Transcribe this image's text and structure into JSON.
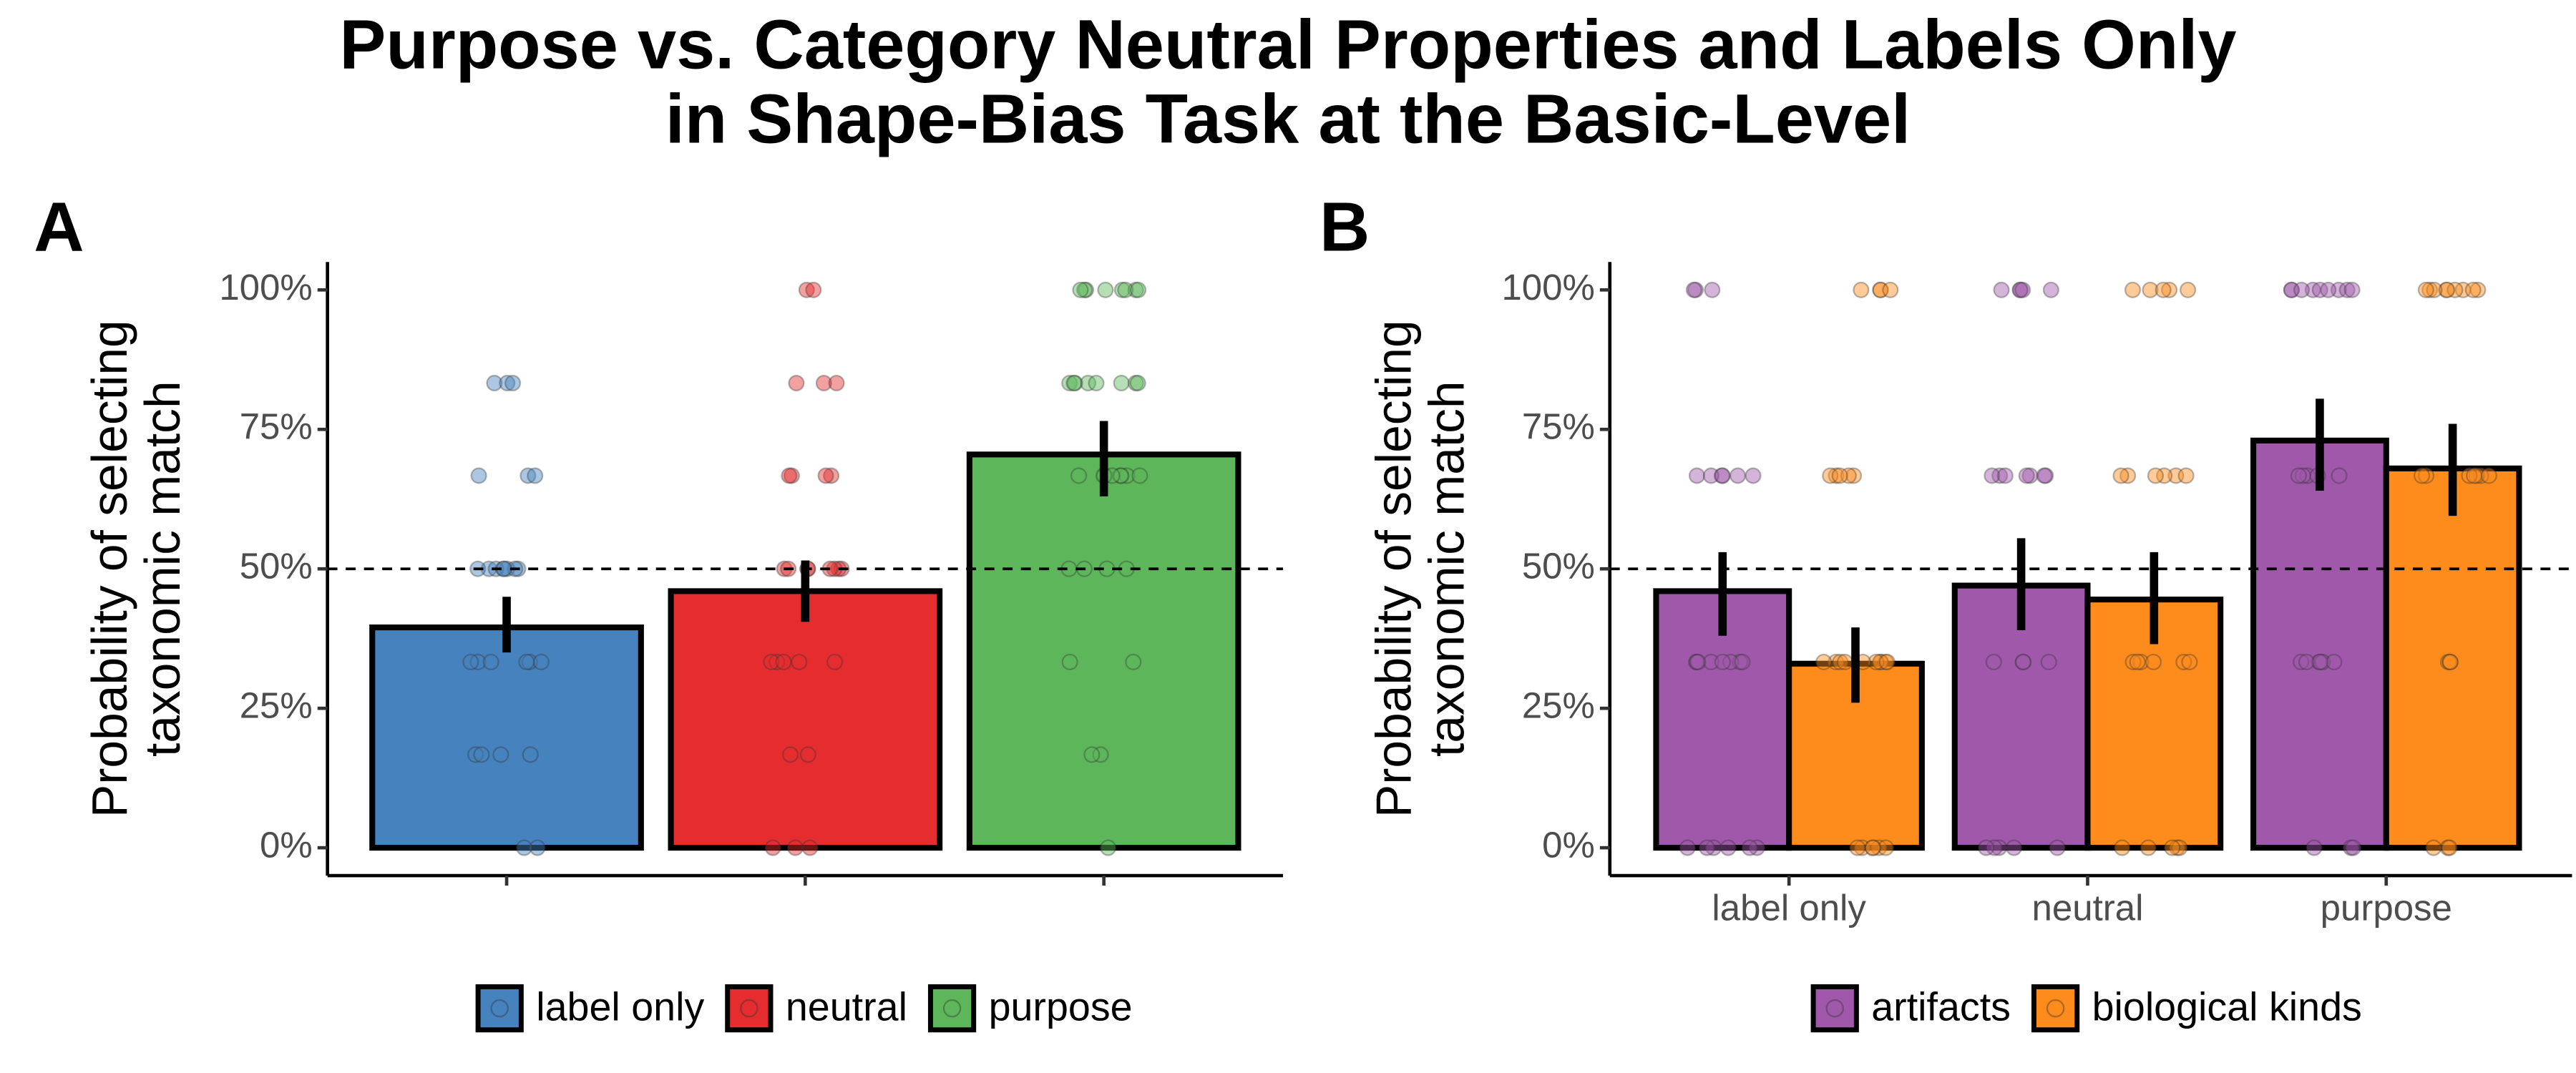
{
  "title": [
    "Purpose vs. Category Neutral Properties and Labels Only",
    "in Shape-Bias Task at the Basic-Level"
  ],
  "chart_data": [
    {
      "type": "bar",
      "panel": "A",
      "ylabel": [
        "Probability of selecting",
        "taxonomic match"
      ],
      "categories": [
        "label only",
        "neutral",
        "purpose"
      ],
      "show_x_tick_labels": false,
      "colors": [
        "#4682bd",
        "#e52d2f",
        "#5db75a"
      ],
      "values": [
        39.5,
        46,
        70.5
      ],
      "ci_low": [
        35,
        40.5,
        63
      ],
      "ci_high": [
        45,
        51.5,
        76.5
      ],
      "points": [
        [
          0,
          0,
          16.7,
          16.7,
          16.7,
          16.7,
          33.3,
          33.3,
          33.3,
          33.3,
          33.3,
          33.3,
          50,
          50,
          50,
          50,
          50,
          50,
          50,
          50,
          66.7,
          66.7,
          66.7,
          83.3,
          83.3,
          83.3
        ],
        [
          0,
          0,
          0,
          16.7,
          16.7,
          33.3,
          33.3,
          33.3,
          33.3,
          33.3,
          50,
          50,
          50,
          50,
          50,
          50,
          50,
          50,
          66.7,
          66.7,
          66.7,
          66.7,
          83.3,
          83.3,
          83.3,
          100,
          100
        ],
        [
          0,
          16.7,
          16.7,
          33.3,
          33.3,
          50,
          50,
          50,
          50,
          66.7,
          66.7,
          66.7,
          66.7,
          66.7,
          66.7,
          66.7,
          66.7,
          83.3,
          83.3,
          83.3,
          83.3,
          83.3,
          83.3,
          83.3,
          83.3,
          100,
          100,
          100,
          100,
          100,
          100,
          100,
          100
        ]
      ],
      "reference_line": 50,
      "ylim": [
        -5,
        105
      ],
      "yticks": [
        {
          "value": 0,
          "label": "0%"
        },
        {
          "value": 25,
          "label": "25%"
        },
        {
          "value": 50,
          "label": "50%"
        },
        {
          "value": 75,
          "label": "75%"
        },
        {
          "value": 100,
          "label": "100%"
        }
      ]
    },
    {
      "type": "grouped_bar",
      "panel": "B",
      "ylabel": [
        "Probability of selecting",
        "taxonomic match"
      ],
      "categories": [
        "label only",
        "neutral",
        "purpose"
      ],
      "show_x_tick_labels": true,
      "series": [
        {
          "name": "artifacts",
          "color": "#9f58aa",
          "values": [
            46,
            47,
            73
          ],
          "ci_low": [
            38,
            39,
            64
          ],
          "ci_high": [
            53,
            55.5,
            80.5
          ],
          "points": [
            [
              0,
              0,
              0,
              0,
              0,
              0,
              33.3,
              33.3,
              33.3,
              33.3,
              33.3,
              33.3,
              33.3,
              33.3,
              66.7,
              66.7,
              66.7,
              66.7,
              66.7,
              66.7,
              100,
              100,
              100
            ],
            [
              0,
              0,
              0,
              0,
              0,
              33.3,
              33.3,
              33.3,
              33.3,
              66.7,
              66.7,
              66.7,
              66.7,
              66.7,
              66.7,
              66.7,
              100,
              100,
              100,
              100,
              100
            ],
            [
              0,
              0,
              0,
              33.3,
              33.3,
              33.3,
              33.3,
              33.3,
              33.3,
              66.7,
              66.7,
              66.7,
              66.7,
              66.7,
              100,
              100,
              100,
              100,
              100,
              100,
              100,
              100,
              100
            ]
          ]
        },
        {
          "name": "biological kinds",
          "color": "#fd8c1c",
          "values": [
            33,
            44.5,
            68
          ],
          "ci_low": [
            26,
            36.5,
            59.5
          ],
          "ci_high": [
            39.5,
            53,
            76
          ],
          "points": [
            [
              0,
              0,
              0,
              0,
              0,
              0,
              33.3,
              33.3,
              33.3,
              33.3,
              33.3,
              33.3,
              33.3,
              33.3,
              33.3,
              33.3,
              66.7,
              66.7,
              66.7,
              66.7,
              66.7,
              100,
              100,
              100,
              100
            ],
            [
              0,
              0,
              0,
              0,
              0,
              33.3,
              33.3,
              33.3,
              33.3,
              33.3,
              33.3,
              66.7,
              66.7,
              66.7,
              66.7,
              66.7,
              66.7,
              100,
              100,
              100,
              100,
              100
            ],
            [
              0,
              0,
              0,
              33.3,
              33.3,
              33.3,
              66.7,
              66.7,
              66.7,
              66.7,
              66.7,
              66.7,
              66.7,
              100,
              100,
              100,
              100,
              100,
              100,
              100,
              100,
              100
            ]
          ]
        }
      ],
      "reference_line": 50,
      "ylim": [
        -5,
        105
      ],
      "yticks": [
        {
          "value": 0,
          "label": "0%"
        },
        {
          "value": 25,
          "label": "25%"
        },
        {
          "value": 50,
          "label": "50%"
        },
        {
          "value": 75,
          "label": "75%"
        },
        {
          "value": 100,
          "label": "100%"
        }
      ]
    }
  ]
}
